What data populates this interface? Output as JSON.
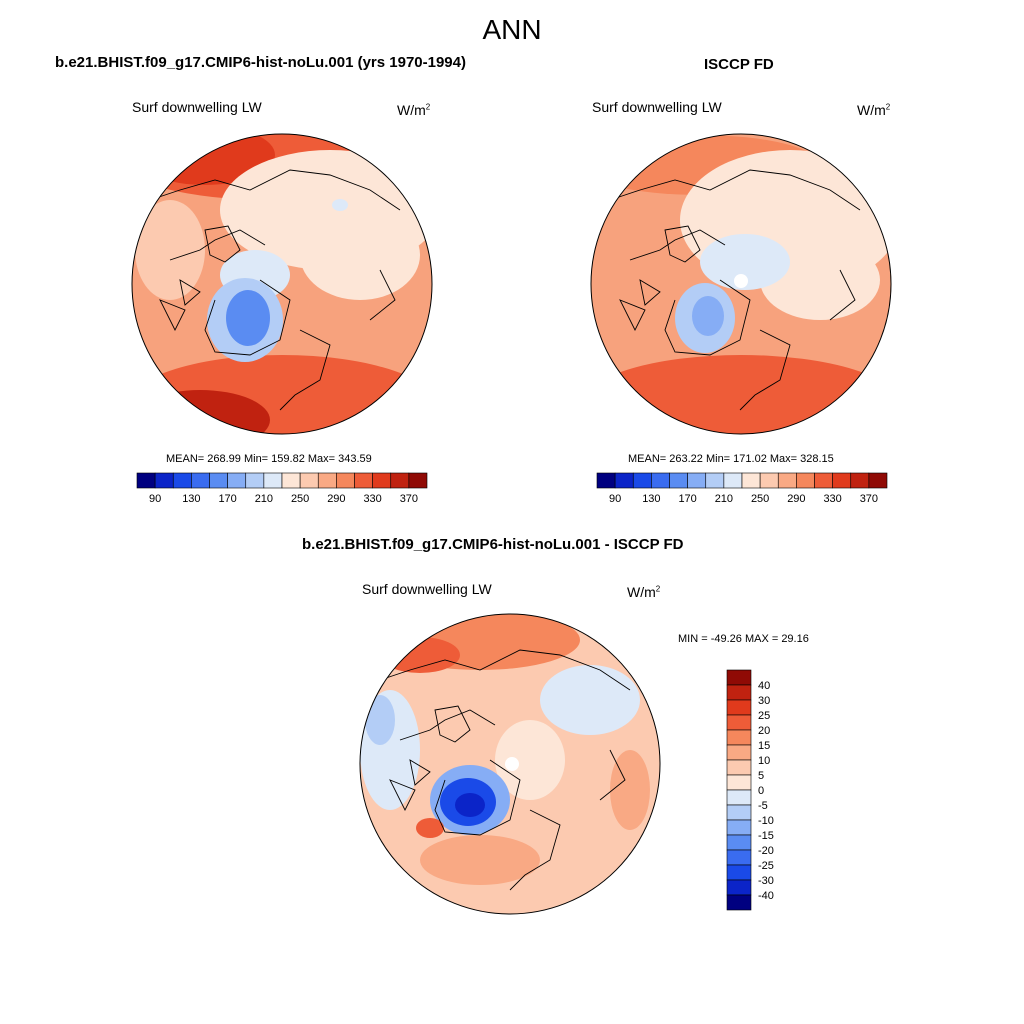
{
  "figure": {
    "title": "ANN",
    "colors": {
      "abs_levels": [
        "#000080",
        "#0b24c8",
        "#1a4ae8",
        "#3a6cf0",
        "#5a8cf2",
        "#86adf5",
        "#b3cdf6",
        "#dde9f8",
        "#fde6d7",
        "#fccab0",
        "#f9a984",
        "#f5875c",
        "#ee5c38",
        "#e03a1c",
        "#c02210",
        "#900a05"
      ],
      "diff_levels": [
        "#000080",
        "#0b24c8",
        "#1a4ae8",
        "#3a6cf0",
        "#5a8cf2",
        "#86adf5",
        "#b3cdf6",
        "#dde9f8",
        "#fde6d7",
        "#fccab0",
        "#f9a984",
        "#f5875c",
        "#ee5c38",
        "#e03a1c",
        "#c02210",
        "#900a05"
      ]
    }
  },
  "chart_data": [
    {
      "type": "heatmap",
      "projection": "polar-stereographic-north",
      "panel_title": "b.e21.BHIST.f09_g17.CMIP6-hist-noLu.001 (yrs 1970-1994)",
      "variable": "Surf downwelling LW",
      "units": "W/m",
      "units_sup": "2",
      "stats": {
        "label": "MEAN= 268.99  Min= 159.82  Max= 343.59",
        "mean": 268.99,
        "min": 159.82,
        "max": 343.59
      },
      "colorbar": {
        "orientation": "horizontal",
        "tick_labels": [
          "90",
          "130",
          "170",
          "210",
          "250",
          "290",
          "330",
          "370"
        ],
        "levels_from": 80,
        "levels_to": 380,
        "level_step": 20
      }
    },
    {
      "type": "heatmap",
      "projection": "polar-stereographic-north",
      "panel_title": "ISCCP FD",
      "variable": "Surf downwelling LW",
      "units": "W/m",
      "units_sup": "2",
      "stats": {
        "label": "MEAN= 263.22  Min= 171.02  Max= 328.15",
        "mean": 263.22,
        "min": 171.02,
        "max": 328.15
      },
      "colorbar": {
        "orientation": "horizontal",
        "tick_labels": [
          "90",
          "130",
          "170",
          "210",
          "250",
          "290",
          "330",
          "370"
        ],
        "levels_from": 80,
        "levels_to": 380,
        "level_step": 20
      }
    },
    {
      "type": "heatmap",
      "projection": "polar-stereographic-north",
      "panel_title": "b.e21.BHIST.f09_g17.CMIP6-hist-noLu.001 - ISCCP FD",
      "variable": "Surf downwelling LW",
      "units": "W/m",
      "units_sup": "2",
      "stats": {
        "label": "MIN = -49.26 MAX =  29.16",
        "min": -49.26,
        "max": 29.16
      },
      "colorbar": {
        "orientation": "vertical",
        "tick_labels": [
          "40",
          "30",
          "25",
          "20",
          "15",
          "10",
          "5",
          "0",
          "-5",
          "-10",
          "-15",
          "-20",
          "-25",
          "-30",
          "-40"
        ]
      }
    }
  ]
}
